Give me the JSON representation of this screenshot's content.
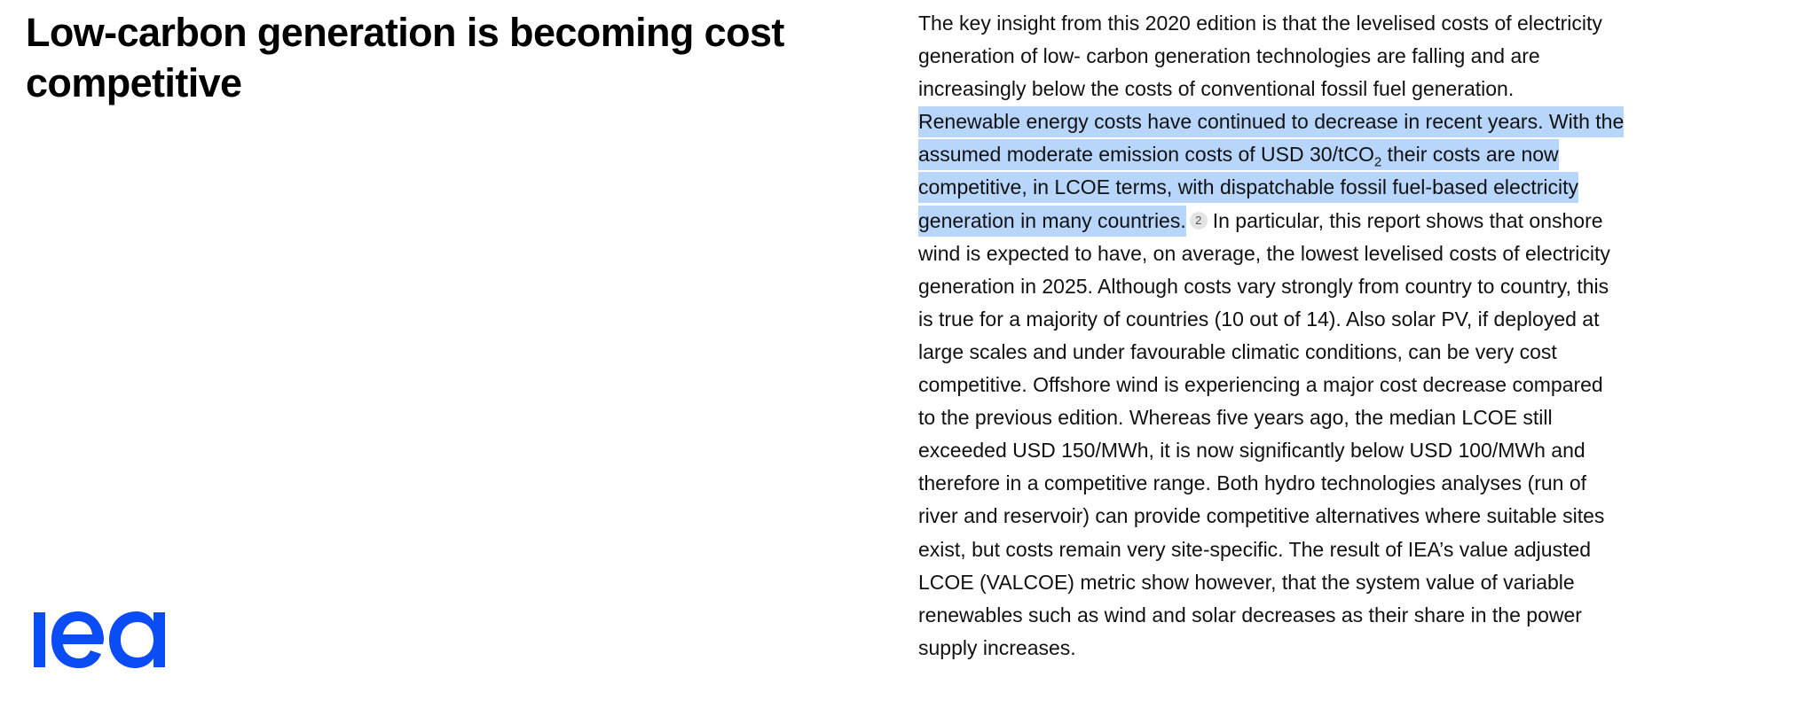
{
  "heading": "Low-carbon generation is becoming cost competitive",
  "logo": {
    "text": "iea",
    "color": "#0a4cf5"
  },
  "highlight_color": "#b8d6fb",
  "lines": [
    [
      {
        "t": "The key insight from this 2020 edition is that the levelised costs of electricity"
      }
    ],
    [
      {
        "t": "generation of low- carbon generation technologies are falling and are"
      }
    ],
    [
      {
        "t": "increasingly below the costs of conventional fossil fuel generation."
      }
    ],
    [
      {
        "t": "Renewable energy costs have continued to decrease in recent years. With the",
        "hl": true
      }
    ],
    [
      {
        "t": "assumed moderate emission costs of USD 30/tCO",
        "hl": true
      },
      {
        "sub": "2",
        "hl": true
      },
      {
        "t": " their costs are now",
        "hl": true
      }
    ],
    [
      {
        "t": "competitive, in LCOE terms, with dispatchable fossil fuel-based electricity",
        "hl": true
      }
    ],
    [
      {
        "t": "generation in many countries.",
        "hl": true
      },
      {
        "fn": "2"
      },
      {
        "t": "In particular, this report shows that onshore"
      }
    ],
    [
      {
        "t": "wind is expected to have, on average, the lowest levelised costs of electricity"
      }
    ],
    [
      {
        "t": "generation in 2025. Although costs vary strongly from country to country, this"
      }
    ],
    [
      {
        "t": "is true for a majority of countries (10 out of 14). Also solar PV, if deployed at"
      }
    ],
    [
      {
        "t": "large scales and under favourable climatic conditions, can be very cost"
      }
    ],
    [
      {
        "t": "competitive. Offshore wind is experiencing a major cost decrease compared"
      }
    ],
    [
      {
        "t": "to the previous edition. Whereas five years ago, the median LCOE still"
      }
    ],
    [
      {
        "t": "exceeded USD 150/MWh, it is now significantly below USD 100/MWh and"
      }
    ],
    [
      {
        "t": "therefore in a competitive range. Both hydro technologies analyses (run of"
      }
    ],
    [
      {
        "t": "river and reservoir) can provide competitive alternatives where suitable sites"
      }
    ],
    [
      {
        "t": "exist, but costs remain very site-specific. The result of IEA’s value adjusted"
      }
    ],
    [
      {
        "t": "LCOE (VALCOE) metric show however, that the system value of variable"
      }
    ],
    [
      {
        "t": "renewables such as wind and solar decreases as their share in the power"
      }
    ],
    [
      {
        "t": "supply increases."
      }
    ]
  ]
}
